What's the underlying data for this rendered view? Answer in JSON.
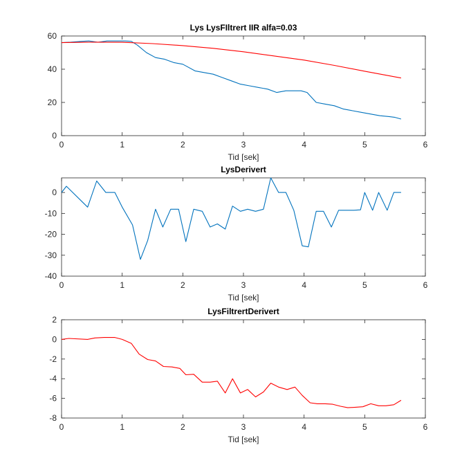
{
  "colors": {
    "blue": "#0072bd",
    "red": "#ff0000",
    "axis": "#262626"
  },
  "chart_data": [
    {
      "type": "line",
      "title": "Lys LysFIltrert IIR alfa=0.03",
      "xlabel": "Tid [sek]",
      "ylabel": "",
      "xlim": [
        0,
        6
      ],
      "ylim": [
        0,
        60
      ],
      "xticks": [
        "0",
        "1",
        "2",
        "3",
        "4",
        "5",
        "6"
      ],
      "yticks": [
        "0",
        "20",
        "40",
        "60"
      ],
      "grid": false,
      "series": [
        {
          "color": "blue",
          "x": [
            0,
            0.15,
            0.3,
            0.45,
            0.6,
            0.75,
            0.9,
            1.05,
            1.15,
            1.25,
            1.4,
            1.55,
            1.7,
            1.85,
            2.0,
            2.05,
            2.2,
            2.35,
            2.5,
            2.65,
            2.8,
            2.95,
            3.1,
            3.25,
            3.4,
            3.55,
            3.7,
            3.85,
            3.95,
            4.05,
            4.2,
            4.35,
            4.5,
            4.65,
            4.8,
            4.95,
            5.1,
            5.25,
            5.4,
            5.5,
            5.6
          ],
          "y": [
            56,
            56.3,
            56.7,
            57,
            56.2,
            57,
            57,
            57,
            56.8,
            54.5,
            50,
            47,
            46,
            44,
            43,
            42,
            39,
            38,
            37,
            35,
            33,
            31,
            30,
            29,
            28,
            26,
            27,
            27,
            27,
            26,
            20,
            19,
            18,
            16,
            15,
            14,
            13,
            12,
            11.5,
            11,
            10
          ],
          "linestyle": "solid"
        },
        {
          "color": "red",
          "x": [
            0,
            0.5,
            1.0,
            1.5,
            2.0,
            2.5,
            3.0,
            3.5,
            4.0,
            4.5,
            5.0,
            5.6
          ],
          "y": [
            56,
            56.3,
            56.2,
            55.4,
            54.2,
            52.6,
            50.5,
            48,
            45.5,
            42.3,
            38.8,
            34.7
          ],
          "linestyle": "solid"
        }
      ]
    },
    {
      "type": "line",
      "title": "LysDerivert",
      "xlabel": "Tid [sek]",
      "ylabel": "",
      "xlim": [
        0,
        6
      ],
      "ylim": [
        -40,
        7
      ],
      "xticks": [
        "0",
        "1",
        "2",
        "3",
        "4",
        "5",
        "6"
      ],
      "yticks": [
        "-40",
        "-30",
        "-20",
        "-10",
        "0"
      ],
      "grid": false,
      "series": [
        {
          "color": "blue",
          "x": [
            0,
            0.08,
            0.43,
            0.58,
            0.73,
            0.88,
            1.0,
            1.17,
            1.3,
            1.42,
            1.55,
            1.67,
            1.8,
            1.93,
            2.05,
            2.18,
            2.32,
            2.45,
            2.57,
            2.7,
            2.82,
            2.95,
            3.07,
            3.2,
            3.33,
            3.45,
            3.58,
            3.7,
            3.83,
            3.97,
            4.07,
            4.2,
            4.32,
            4.45,
            4.57,
            4.7,
            4.82,
            4.93,
            5.0,
            5.13,
            5.23,
            5.37,
            5.48,
            5.6
          ],
          "y": [
            0,
            3,
            -7,
            5.5,
            0,
            0,
            -7,
            -15.5,
            -32,
            -23,
            -8,
            -16.5,
            -8,
            -8,
            -23.5,
            -8,
            -9,
            -16.5,
            -15,
            -17.5,
            -6.5,
            -9,
            -8,
            -9,
            -8,
            7,
            0,
            0,
            -8.5,
            -25.5,
            -26,
            -9,
            -9,
            -16.5,
            -8.5,
            -8.5,
            -8.5,
            -8.3,
            0,
            -8.5,
            0,
            -8.5,
            0,
            0
          ],
          "linestyle": "solid"
        }
      ]
    },
    {
      "type": "line",
      "title": "LysFiltrertDerivert",
      "xlabel": "Tid [sek]",
      "ylabel": "",
      "xlim": [
        0,
        6
      ],
      "ylim": [
        -8,
        2
      ],
      "xticks": [
        "0",
        "1",
        "2",
        "3",
        "4",
        "5",
        "6"
      ],
      "yticks": [
        "-8",
        "-6",
        "-4",
        "-2",
        "0",
        "2"
      ],
      "grid": false,
      "series": [
        {
          "color": "red",
          "x": [
            0,
            0.12,
            0.43,
            0.55,
            0.7,
            0.88,
            1.0,
            1.15,
            1.28,
            1.42,
            1.55,
            1.68,
            1.82,
            1.95,
            2.05,
            2.18,
            2.32,
            2.45,
            2.57,
            2.7,
            2.82,
            2.95,
            3.07,
            3.2,
            3.33,
            3.45,
            3.58,
            3.72,
            3.85,
            3.97,
            4.1,
            4.22,
            4.35,
            4.47,
            4.6,
            4.72,
            4.85,
            4.97,
            5.1,
            5.23,
            5.35,
            5.48,
            5.6
          ],
          "y": [
            0,
            0.1,
            0,
            0.15,
            0.2,
            0.2,
            0,
            -0.4,
            -1.5,
            -2.05,
            -2.2,
            -2.75,
            -2.8,
            -2.95,
            -3.6,
            -3.55,
            -4.35,
            -4.35,
            -4.25,
            -5.45,
            -4.0,
            -5.45,
            -5.1,
            -5.85,
            -5.35,
            -4.45,
            -4.85,
            -5.1,
            -4.85,
            -5.7,
            -6.45,
            -6.55,
            -6.55,
            -6.6,
            -6.8,
            -6.95,
            -6.9,
            -6.85,
            -6.55,
            -6.75,
            -6.75,
            -6.65,
            -6.2
          ],
          "linestyle": "solid"
        }
      ]
    }
  ]
}
